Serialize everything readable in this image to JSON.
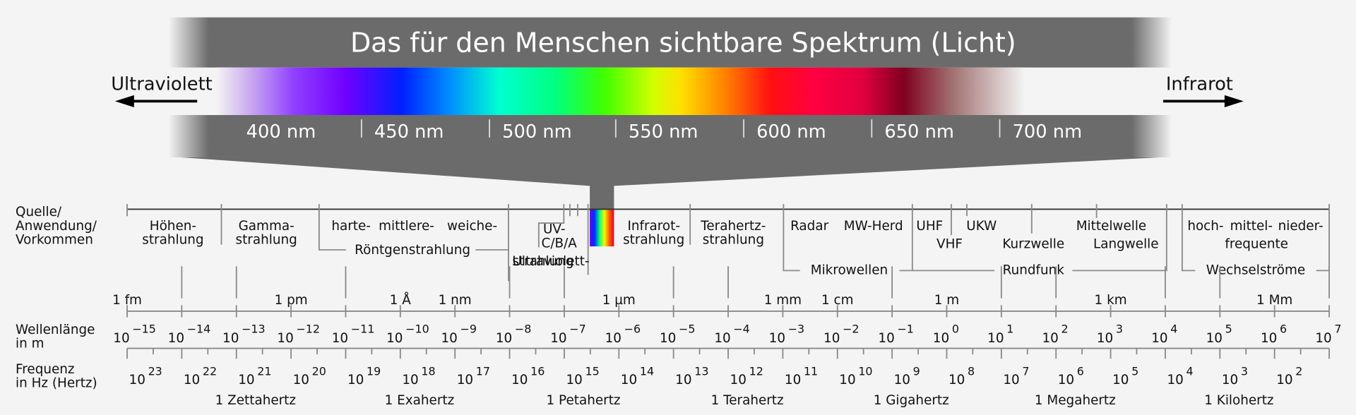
{
  "title": "Das für den Menschen sichtbare Spektrum (Licht)",
  "left_label": "Ultraviolett",
  "right_label": "Infrarot",
  "visible_ticks": [
    "400 nm",
    "450 nm",
    "500 nm",
    "550 nm",
    "600 nm",
    "650 nm",
    "700 nm"
  ],
  "row_labels": {
    "source": [
      "Quelle/",
      "Anwendung/",
      "Vorkommen"
    ],
    "wavelength": [
      "Wellenlänge",
      "in m"
    ],
    "frequency": [
      "Frequenz",
      "in Hz (Hertz)"
    ]
  },
  "sources": [
    {
      "lines": [
        "Höhen-",
        "strahlung"
      ]
    },
    {
      "lines": [
        "Gamma-",
        "strahlung"
      ]
    },
    {
      "lines": [
        "harte-"
      ]
    },
    {
      "lines": [
        "mittlere-"
      ]
    },
    {
      "lines": [
        "weiche-"
      ]
    },
    {
      "lines": [
        "Röntgenstrahlung"
      ]
    },
    {
      "lines": [
        "UV-",
        "C/B/A"
      ]
    },
    {
      "lines": [
        "Ultraviolett-",
        "strahlung"
      ]
    },
    {
      "lines": [
        "Infrarot-",
        "strahlung"
      ]
    },
    {
      "lines": [
        "Terahertz-",
        "strahlung"
      ]
    },
    {
      "lines": [
        "Radar"
      ]
    },
    {
      "lines": [
        "MW-Herd"
      ]
    },
    {
      "lines": [
        "Mikrowellen"
      ]
    },
    {
      "lines": [
        "UHF"
      ]
    },
    {
      "lines": [
        "VHF"
      ]
    },
    {
      "lines": [
        "UKW"
      ]
    },
    {
      "lines": [
        "Kurzwelle"
      ]
    },
    {
      "lines": [
        "Mittelwelle"
      ]
    },
    {
      "lines": [
        "Langwelle"
      ]
    },
    {
      "lines": [
        "Rundfunk"
      ]
    },
    {
      "lines": [
        "hoch-"
      ]
    },
    {
      "lines": [
        "mittel-"
      ]
    },
    {
      "lines": [
        "nieder-"
      ]
    },
    {
      "lines": [
        "frequente"
      ]
    },
    {
      "lines": [
        "Wechselströme"
      ]
    }
  ],
  "wavelength_units": [
    "1 fm",
    "1 pm",
    "1 Å",
    "1 nm",
    "1 µm",
    "1 mm",
    "1 cm",
    "1 m",
    "1 km",
    "1 Mm"
  ],
  "power_base": "10",
  "wavelength_exponents": [
    "−15",
    "−14",
    "−13",
    "−12",
    "−11",
    "−10",
    "−9",
    "−8",
    "−7",
    "−6",
    "−5",
    "−4",
    "−3",
    "−2",
    "−1",
    "0",
    "1",
    "2",
    "3",
    "4",
    "5",
    "6",
    "7"
  ],
  "frequency_exponents": [
    "23",
    "22",
    "21",
    "20",
    "19",
    "18",
    "17",
    "16",
    "15",
    "14",
    "13",
    "12",
    "11",
    "10",
    "9",
    "8",
    "7",
    "6",
    "5",
    "4",
    "3",
    "2"
  ],
  "frequency_units": [
    "1 Zettahertz",
    "1 Exahertz",
    "1 Petahertz",
    "1 Terahertz",
    "1 Gigahertz",
    "1 Megahertz",
    "1 Kilohertz"
  ]
}
